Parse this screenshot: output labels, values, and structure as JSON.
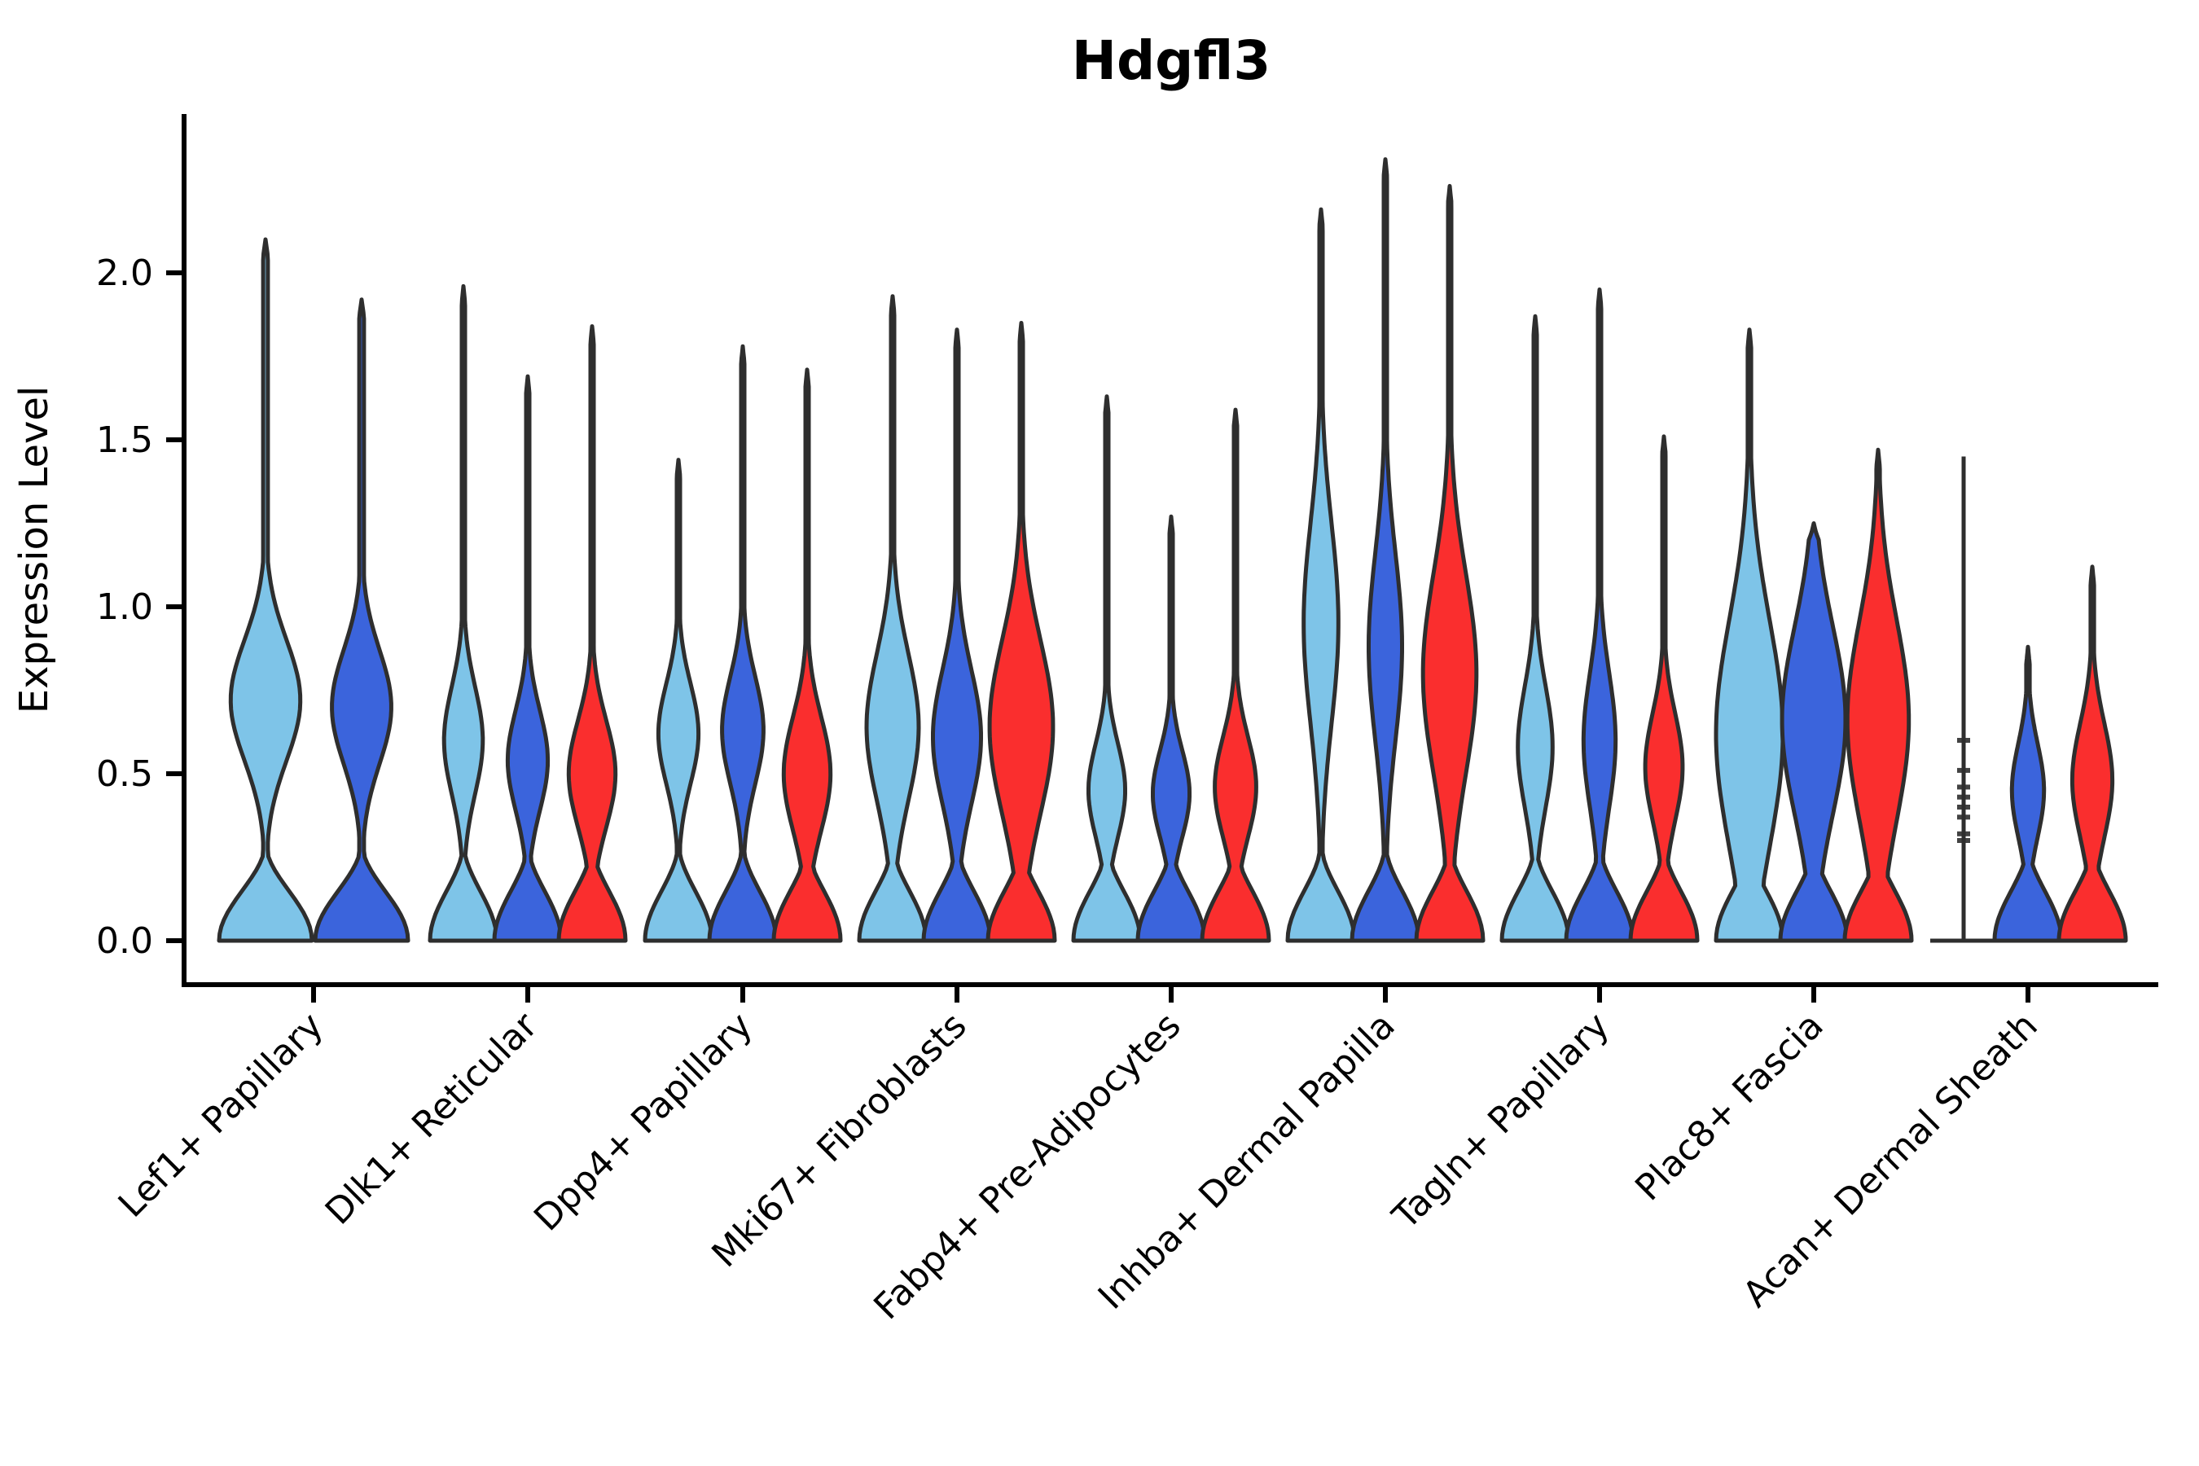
{
  "chart_data": {
    "type": "violin",
    "title": "Hdgfl3",
    "ylabel": "Expression Level",
    "yticks": [
      0.0,
      0.5,
      1.0,
      1.5,
      2.0
    ],
    "ytick_labels": [
      "0.0",
      "0.5",
      "1.0",
      "1.5",
      "2.0"
    ],
    "ylim": [
      -0.13,
      2.48
    ],
    "grid": false,
    "legend": "none",
    "categories": [
      "Lef1+ Papillary",
      "Dlk1+ Reticular",
      "Dpp4+ Papillary",
      "Mki67+ Fibroblasts",
      "Fabp4+ Pre-Adipocytes",
      "Inhba+ Dermal Papilla",
      "Tagln+ Papillary",
      "Plac8+ Fascia",
      "Acan+ Dermal Sheath"
    ],
    "colors": {
      "light_blue": "#7EC4E8",
      "dark_blue": "#3B64DC",
      "red": "#FA2E2E",
      "outline": "#2E2E2E",
      "axis": "#000000"
    },
    "groups": [
      {
        "category": "Lef1+ Papillary",
        "violins": [
          {
            "color": "light_blue",
            "max": 2.1,
            "bulge_center": 0.72,
            "bulge_peak": 0.75,
            "bulge_sigma": 0.18
          },
          {
            "color": "dark_blue",
            "max": 1.92,
            "bulge_center": 0.7,
            "bulge_peak": 0.64,
            "bulge_sigma": 0.17
          }
        ]
      },
      {
        "category": "Dlk1+ Reticular",
        "violins": [
          {
            "color": "light_blue",
            "max": 1.96,
            "bulge_center": 0.6,
            "bulge_peak": 0.58,
            "bulge_sigma": 0.16
          },
          {
            "color": "dark_blue",
            "max": 1.69,
            "bulge_center": 0.54,
            "bulge_peak": 0.6,
            "bulge_sigma": 0.15
          },
          {
            "color": "red",
            "max": 1.84,
            "bulge_center": 0.5,
            "bulge_peak": 0.7,
            "bulge_sigma": 0.16
          }
        ]
      },
      {
        "category": "Dpp4+ Papillary",
        "violins": [
          {
            "color": "light_blue",
            "max": 1.44,
            "bulge_center": 0.62,
            "bulge_peak": 0.6,
            "bulge_sigma": 0.15
          },
          {
            "color": "dark_blue",
            "max": 1.78,
            "bulge_center": 0.63,
            "bulge_peak": 0.62,
            "bulge_sigma": 0.16
          },
          {
            "color": "red",
            "max": 1.71,
            "bulge_center": 0.5,
            "bulge_peak": 0.7,
            "bulge_sigma": 0.17
          }
        ]
      },
      {
        "category": "Mki67+ Fibroblasts",
        "violins": [
          {
            "color": "light_blue",
            "max": 1.93,
            "bulge_center": 0.64,
            "bulge_peak": 0.78,
            "bulge_sigma": 0.22
          },
          {
            "color": "dark_blue",
            "max": 1.83,
            "bulge_center": 0.61,
            "bulge_peak": 0.72,
            "bulge_sigma": 0.2
          },
          {
            "color": "red",
            "max": 1.85,
            "bulge_center": 0.64,
            "bulge_peak": 0.95,
            "bulge_sigma": 0.26
          }
        ]
      },
      {
        "category": "Fabp4+ Pre-Adipocytes",
        "violins": [
          {
            "color": "light_blue",
            "max": 1.63,
            "bulge_center": 0.45,
            "bulge_peak": 0.55,
            "bulge_sigma": 0.14
          },
          {
            "color": "dark_blue",
            "max": 1.27,
            "bulge_center": 0.44,
            "bulge_peak": 0.55,
            "bulge_sigma": 0.13
          },
          {
            "color": "red",
            "max": 1.59,
            "bulge_center": 0.46,
            "bulge_peak": 0.62,
            "bulge_sigma": 0.15
          }
        ]
      },
      {
        "category": "Inhba+ Dermal Papilla",
        "violins": [
          {
            "color": "light_blue",
            "max": 2.19,
            "bulge_center": 0.95,
            "bulge_peak": 0.52,
            "bulge_sigma": 0.3
          },
          {
            "color": "dark_blue",
            "max": 2.34,
            "bulge_center": 0.88,
            "bulge_peak": 0.5,
            "bulge_sigma": 0.28
          },
          {
            "color": "red",
            "max": 2.26,
            "bulge_center": 0.8,
            "bulge_peak": 0.8,
            "bulge_sigma": 0.3
          }
        ]
      },
      {
        "category": "Tagln+ Papillary",
        "violins": [
          {
            "color": "light_blue",
            "max": 1.87,
            "bulge_center": 0.58,
            "bulge_peak": 0.52,
            "bulge_sigma": 0.18
          },
          {
            "color": "dark_blue",
            "max": 1.95,
            "bulge_center": 0.6,
            "bulge_peak": 0.48,
            "bulge_sigma": 0.2
          },
          {
            "color": "red",
            "max": 1.51,
            "bulge_center": 0.52,
            "bulge_peak": 0.56,
            "bulge_sigma": 0.16
          }
        ]
      },
      {
        "category": "Plac8+ Fascia",
        "violins": [
          {
            "color": "light_blue",
            "max": 1.83,
            "bulge_center": 0.62,
            "bulge_peak": 1.0,
            "bulge_sigma": 0.34
          },
          {
            "color": "dark_blue",
            "max": 1.25,
            "bulge_center": 0.66,
            "bulge_peak": 0.95,
            "bulge_sigma": 0.28
          },
          {
            "color": "red",
            "max": 1.47,
            "bulge_center": 0.66,
            "bulge_peak": 0.92,
            "bulge_sigma": 0.3
          }
        ]
      },
      {
        "category": "Acan+ Dermal Sheath",
        "violins": [
          {
            "color": "outline",
            "degenerate": true,
            "max": 1.45,
            "knots": [
              0.6,
              0.51,
              0.46,
              0.43,
              0.4,
              0.37,
              0.32,
              0.3
            ]
          },
          {
            "color": "dark_blue",
            "max": 0.88,
            "bulge_center": 0.45,
            "bulge_peak": 0.48,
            "bulge_sigma": 0.14
          },
          {
            "color": "red",
            "max": 1.12,
            "bulge_center": 0.48,
            "bulge_peak": 0.6,
            "bulge_sigma": 0.17
          }
        ]
      }
    ]
  }
}
